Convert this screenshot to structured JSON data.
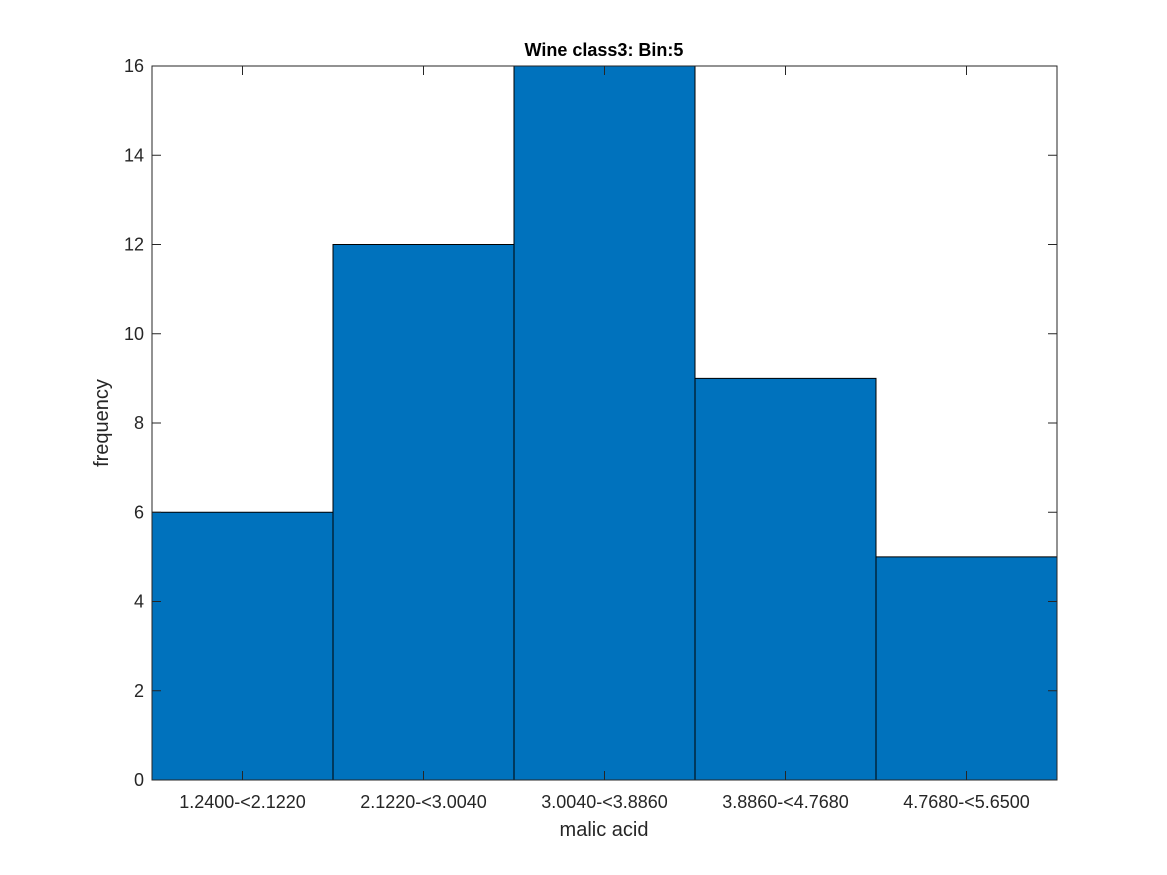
{
  "chart_data": {
    "type": "bar",
    "title": "Wine class3: Bin:5",
    "xlabel": "malic acid",
    "ylabel": "frequency",
    "categories": [
      "1.2400-<2.1220",
      "2.1220-<3.0040",
      "3.0040-<3.8860",
      "3.8860-<4.7680",
      "4.7680-<5.6500"
    ],
    "values": [
      6,
      12,
      16,
      9,
      5
    ],
    "ylim": [
      0,
      16
    ],
    "yticks": [
      0,
      2,
      4,
      6,
      8,
      10,
      12,
      14,
      16
    ],
    "grid": false,
    "legend": "none",
    "colors": {
      "bar": "#0072BD",
      "edge": "#000000",
      "axis": "#262626"
    }
  }
}
